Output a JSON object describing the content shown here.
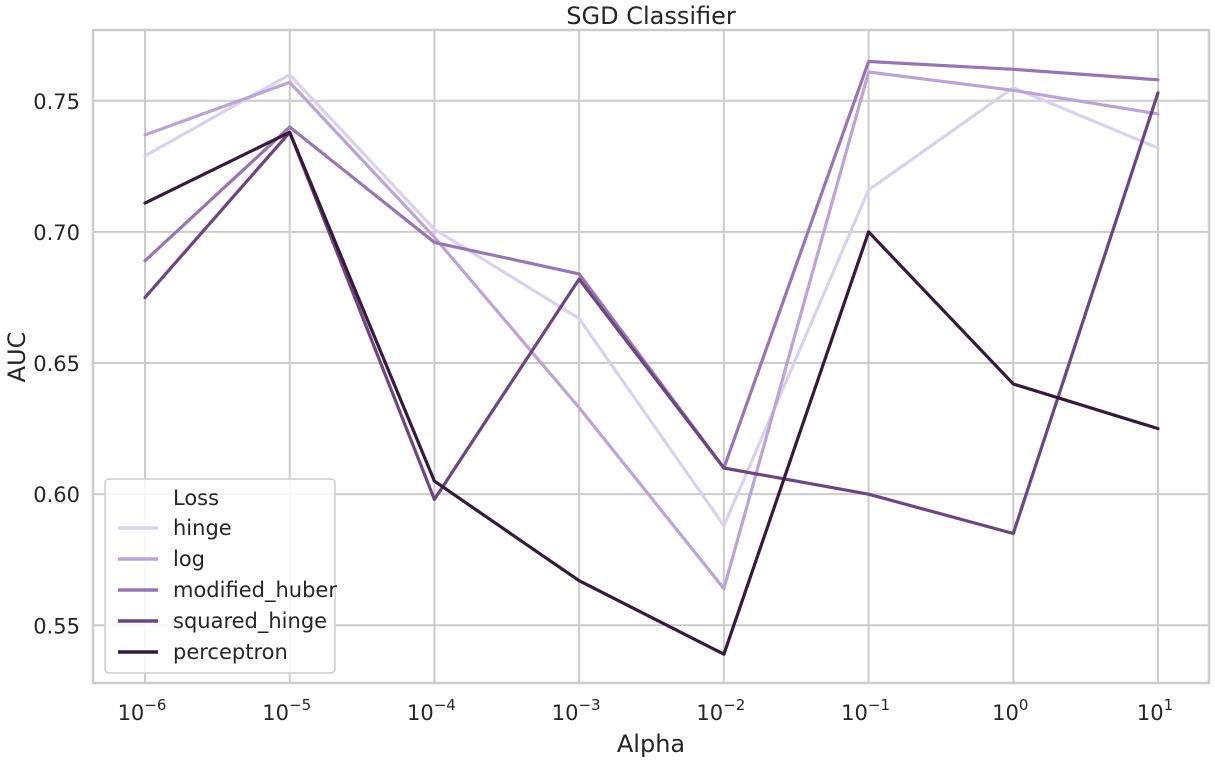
{
  "chart_data": {
    "type": "line",
    "title": "SGD Classifier",
    "xlabel": "Alpha",
    "ylabel": "AUC",
    "x_scale": "log",
    "x": [
      1e-06,
      1e-05,
      0.0001,
      0.001,
      0.01,
      0.1,
      1,
      10
    ],
    "x_tick_labels": [
      {
        "base": "10",
        "exp": "−6"
      },
      {
        "base": "10",
        "exp": "−5"
      },
      {
        "base": "10",
        "exp": "−4"
      },
      {
        "base": "10",
        "exp": "−3"
      },
      {
        "base": "10",
        "exp": "−2"
      },
      {
        "base": "10",
        "exp": "−1"
      },
      {
        "base": "10",
        "exp": "0"
      },
      {
        "base": "10",
        "exp": "1"
      }
    ],
    "ylim": [
      0.528,
      0.777
    ],
    "y_ticks": [
      0.55,
      0.6,
      0.65,
      0.7,
      0.75
    ],
    "y_tick_labels": [
      "0.55",
      "0.60",
      "0.65",
      "0.70",
      "0.75"
    ],
    "grid": true,
    "legend": {
      "title": "Loss",
      "placement": "lower-left"
    },
    "series": [
      {
        "name": "hinge",
        "color": "#dcd1ec",
        "values": [
          0.729,
          0.76,
          0.701,
          0.667,
          0.588,
          0.716,
          0.755,
          0.732
        ]
      },
      {
        "name": "log",
        "color": "#bca4d6",
        "values": [
          0.737,
          0.757,
          0.698,
          0.633,
          0.564,
          0.761,
          0.754,
          0.745
        ]
      },
      {
        "name": "modified_huber",
        "color": "#9876b4",
        "values": [
          0.689,
          0.74,
          0.696,
          0.684,
          0.61,
          0.765,
          0.762,
          0.758
        ]
      },
      {
        "name": "squared_hinge",
        "color": "#6b4680",
        "values": [
          0.675,
          0.738,
          0.598,
          0.682,
          0.61,
          0.6,
          0.585,
          0.753
        ]
      },
      {
        "name": "perceptron",
        "color": "#361a3c",
        "values": [
          0.711,
          0.738,
          0.605,
          0.567,
          0.539,
          0.7,
          0.642,
          0.625
        ]
      }
    ]
  }
}
